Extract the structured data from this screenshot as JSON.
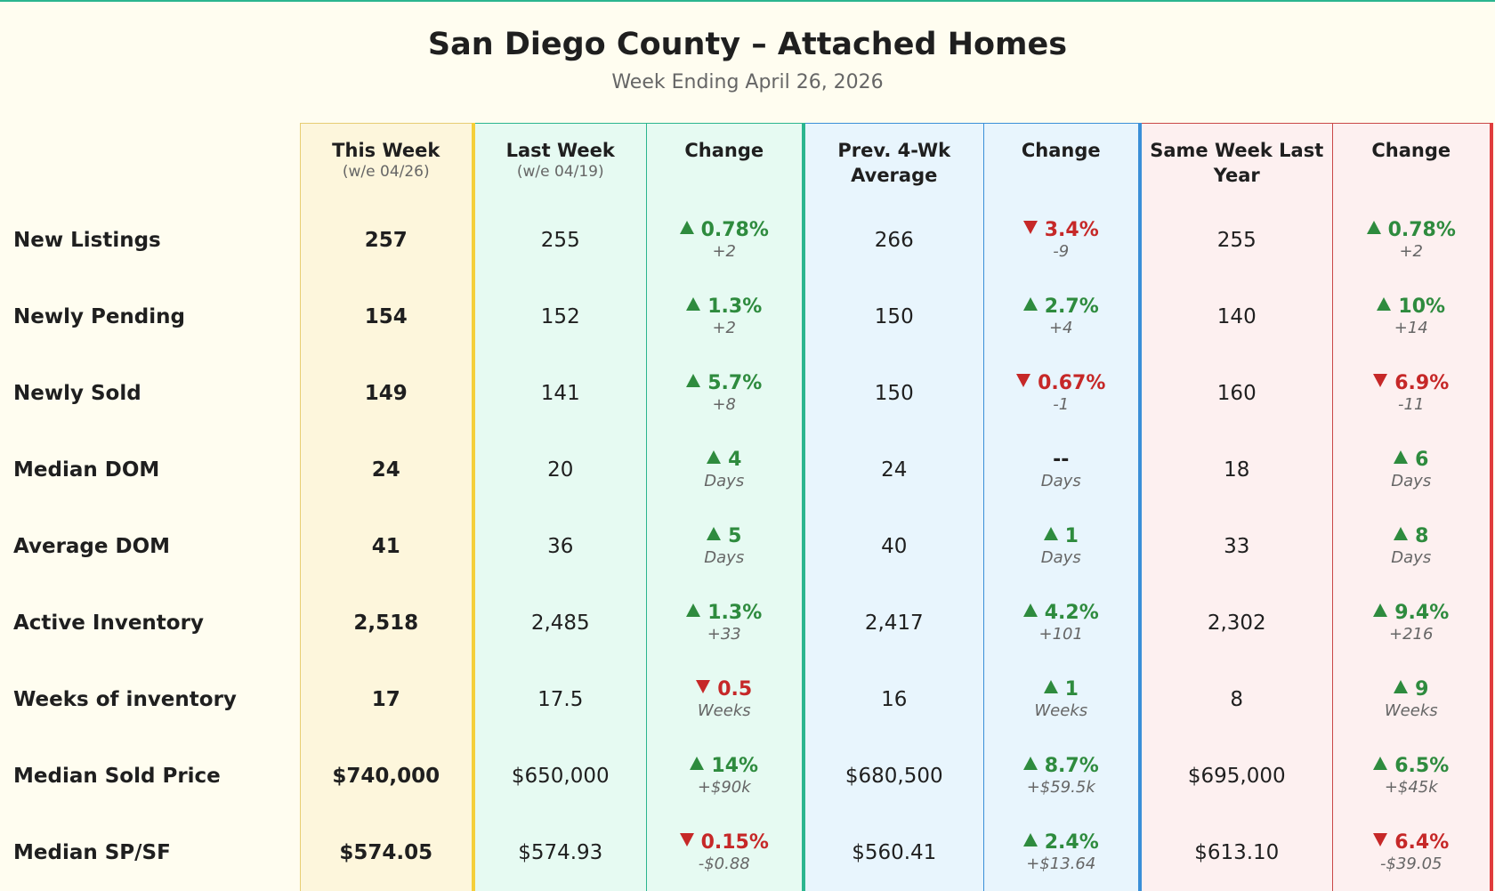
{
  "title": "San Diego County – Attached Homes",
  "subtitle": "Week Ending April 26, 2026",
  "columns": [
    {
      "title": "This Week",
      "subtitle": "(w/e 04/26)"
    },
    {
      "title": "Last Week",
      "subtitle": "(w/e 04/19)"
    },
    {
      "title": "Change"
    },
    {
      "title": "Prev. 4-Wk Average"
    },
    {
      "title": "Change"
    },
    {
      "title": "Same Week Last Year"
    },
    {
      "title": "Change"
    }
  ],
  "rows": [
    {
      "label": "New Listings",
      "this_week": "257",
      "last_week": "255",
      "wow": {
        "direction": "up",
        "value": "0.78%",
        "detail": "+2"
      },
      "prev_avg": "266",
      "vs_avg": {
        "direction": "down",
        "value": "3.4%",
        "detail": "-9"
      },
      "last_year": "255",
      "yoy": {
        "direction": "up",
        "value": "0.78%",
        "detail": "+2"
      }
    },
    {
      "label": "Newly Pending",
      "this_week": "154",
      "last_week": "152",
      "wow": {
        "direction": "up",
        "value": "1.3%",
        "detail": "+2"
      },
      "prev_avg": "150",
      "vs_avg": {
        "direction": "up",
        "value": "2.7%",
        "detail": "+4"
      },
      "last_year": "140",
      "yoy": {
        "direction": "up",
        "value": "10%",
        "detail": "+14"
      }
    },
    {
      "label": "Newly Sold",
      "this_week": "149",
      "last_week": "141",
      "wow": {
        "direction": "up",
        "value": "5.7%",
        "detail": "+8"
      },
      "prev_avg": "150",
      "vs_avg": {
        "direction": "down",
        "value": "0.67%",
        "detail": "-1"
      },
      "last_year": "160",
      "yoy": {
        "direction": "down",
        "value": "6.9%",
        "detail": "-11"
      }
    },
    {
      "label": "Median DOM",
      "this_week": "24",
      "last_week": "20",
      "wow": {
        "direction": "up",
        "value": "4",
        "detail": "Days"
      },
      "prev_avg": "24",
      "vs_avg": {
        "direction": "flat",
        "value": "--",
        "detail": "Days"
      },
      "last_year": "18",
      "yoy": {
        "direction": "up",
        "value": "6",
        "detail": "Days"
      }
    },
    {
      "label": "Average DOM",
      "this_week": "41",
      "last_week": "36",
      "wow": {
        "direction": "up",
        "value": "5",
        "detail": "Days"
      },
      "prev_avg": "40",
      "vs_avg": {
        "direction": "up",
        "value": "1",
        "detail": "Days"
      },
      "last_year": "33",
      "yoy": {
        "direction": "up",
        "value": "8",
        "detail": "Days"
      }
    },
    {
      "label": "Active Inventory",
      "this_week": "2,518",
      "last_week": "2,485",
      "wow": {
        "direction": "up",
        "value": "1.3%",
        "detail": "+33"
      },
      "prev_avg": "2,417",
      "vs_avg": {
        "direction": "up",
        "value": "4.2%",
        "detail": "+101"
      },
      "last_year": "2,302",
      "yoy": {
        "direction": "up",
        "value": "9.4%",
        "detail": "+216"
      }
    },
    {
      "label": "Weeks of inventory",
      "this_week": "17",
      "last_week": "17.5",
      "wow": {
        "direction": "down",
        "value": "0.5",
        "detail": "Weeks"
      },
      "prev_avg": "16",
      "vs_avg": {
        "direction": "up",
        "value": "1",
        "detail": "Weeks"
      },
      "last_year": "8",
      "yoy": {
        "direction": "up",
        "value": "9",
        "detail": "Weeks"
      }
    },
    {
      "label": "Median Sold Price",
      "this_week": "$740,000",
      "last_week": "$650,000",
      "wow": {
        "direction": "up",
        "value": "14%",
        "detail": "+$90k"
      },
      "prev_avg": "$680,500",
      "vs_avg": {
        "direction": "up",
        "value": "8.7%",
        "detail": "+$59.5k"
      },
      "last_year": "$695,000",
      "yoy": {
        "direction": "up",
        "value": "6.5%",
        "detail": "+$45k"
      }
    },
    {
      "label": "Median SP/SF",
      "this_week": "$574.05",
      "last_week": "$574.93",
      "wow": {
        "direction": "down",
        "value": "0.15%",
        "detail": "-$0.88"
      },
      "prev_avg": "$560.41",
      "vs_avg": {
        "direction": "up",
        "value": "2.4%",
        "detail": "+$13.64"
      },
      "last_year": "$613.10",
      "yoy": {
        "direction": "down",
        "value": "6.4%",
        "detail": "-$39.05"
      }
    }
  ]
}
